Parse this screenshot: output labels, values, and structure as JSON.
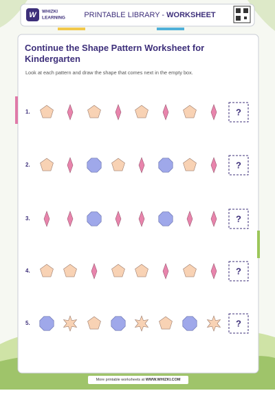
{
  "header": {
    "brand_top": "WHIZKI",
    "brand_bottom": "LEARNING",
    "label": "PRINTABLE LIBRARY - ",
    "label_strong": "WORKSHEET"
  },
  "title": "Continue the Shape Pattern Worksheet for Kindergarten",
  "instructions": "Look at each pattern and draw the shape that comes next in the empty box.",
  "rows": [
    {
      "number": "1.",
      "answer": "?"
    },
    {
      "number": "2.",
      "answer": "?"
    },
    {
      "number": "3.",
      "answer": "?"
    },
    {
      "number": "4.",
      "answer": "?"
    },
    {
      "number": "5.",
      "answer": "?"
    }
  ],
  "footer": {
    "text": "More printable worksheets at ",
    "link": "WWW.WHIZKI.COM"
  }
}
